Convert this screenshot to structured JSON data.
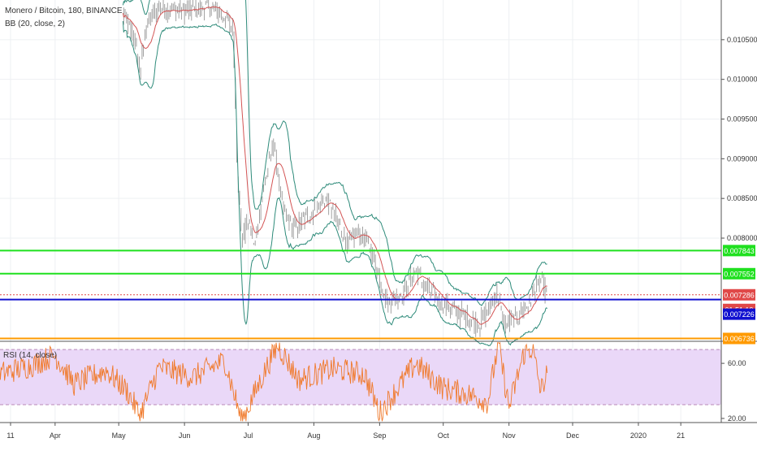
{
  "header": {
    "title": "Monero / Bitcoin, 180, BINANCE",
    "indicator": "BB (20, close, 2)",
    "rsi_label": "RSI (14, close)"
  },
  "colors": {
    "candle": "#8a8a8a",
    "bb_upper": "#2e8b7a",
    "bb_basis": "#d35454",
    "rsi_line": "#f07a2c",
    "rsi_band": "#ead8f8",
    "rsi_band_border": "#b98ab8",
    "grid": "#eef0f3"
  },
  "chart_data": [
    {
      "type": "line",
      "name": "price-panel",
      "x_range": [
        "2019-03-05",
        "2020-01-27"
      ],
      "ylim": [
        0.0067,
        0.011
      ],
      "y_ticks": [
        "0.010500",
        "0.010000",
        "0.009500",
        "0.009000",
        "0.008500",
        "0.008000"
      ],
      "x_ticks": [
        "11",
        "Apr",
        "May",
        "Jun",
        "Jul",
        "Aug",
        "Sep",
        "Oct",
        "Nov",
        "Dec",
        "2020",
        "21"
      ],
      "series": [
        {
          "values": [
            [
              "2019-05-03",
              0.0108
            ],
            [
              "2019-05-08",
              0.01055
            ],
            [
              "2019-05-11",
              0.0101
            ],
            [
              "2019-05-14",
              0.0107
            ],
            [
              "2019-05-20",
              0.0109
            ],
            [
              "2019-06-01",
              0.01085
            ],
            [
              "2019-06-12",
              0.01092
            ],
            [
              "2019-06-20",
              0.0108
            ],
            [
              "2019-06-24",
              0.0106
            ],
            [
              "2019-06-26",
              0.0088
            ],
            [
              "2019-06-28",
              0.008
            ],
            [
              "2019-07-01",
              0.0082
            ],
            [
              "2019-07-04",
              0.0079
            ],
            [
              "2019-07-08",
              0.0086
            ],
            [
              "2019-07-13",
              0.0092
            ],
            [
              "2019-07-17",
              0.0084
            ],
            [
              "2019-07-22",
              0.0081
            ],
            [
              "2019-07-30",
              0.0083
            ],
            [
              "2019-08-07",
              0.0085
            ],
            [
              "2019-08-12",
              0.0082
            ],
            [
              "2019-08-17",
              0.0079
            ],
            [
              "2019-08-22",
              0.0081
            ],
            [
              "2019-08-28",
              0.00785
            ],
            [
              "2019-08-31",
              0.0076
            ],
            [
              "2019-09-04",
              0.0072
            ],
            [
              "2019-09-12",
              0.0073
            ],
            [
              "2019-09-18",
              0.0076
            ],
            [
              "2019-09-22",
              0.0074
            ],
            [
              "2019-09-28",
              0.00725
            ],
            [
              "2019-10-05",
              0.0071
            ],
            [
              "2019-10-12",
              0.007
            ],
            [
              "2019-10-18",
              0.0069
            ],
            [
              "2019-10-22",
              0.0071
            ],
            [
              "2019-10-26",
              0.0073
            ],
            [
              "2019-10-30",
              0.0069
            ],
            [
              "2019-11-04",
              0.007
            ],
            [
              "2019-11-10",
              0.00715
            ],
            [
              "2019-11-13",
              0.00735
            ],
            [
              "2019-11-16",
              0.00745
            ],
            [
              "2019-11-19",
              0.00728
            ]
          ]
        }
      ],
      "horizontal_levels": [
        {
          "value": 0.007843,
          "label": "0.007843",
          "color": "#1fe01f"
        },
        {
          "value": 0.007552,
          "label": "0.007552",
          "color": "#1fe01f"
        },
        {
          "value": 0.007286,
          "label": "0.007286",
          "color": "#e04848"
        },
        {
          "value": 0.007226,
          "label": "0.007226",
          "color": "#1010d0"
        },
        {
          "value": 0.006736,
          "label": "0.006736",
          "color": "#ff9a00"
        }
      ],
      "countdown": {
        "label": "01:51:19",
        "color": "#e04848"
      }
    },
    {
      "type": "line",
      "name": "RSI (14, close)",
      "ylim": [
        17,
        76
      ],
      "y_ticks": [
        60,
        20
      ],
      "bands": [
        70,
        30
      ],
      "series": [
        {
          "name": "RSI (14, close)",
          "values": [
            [
              "2019-03-05",
              52
            ],
            [
              "2019-03-20",
              58
            ],
            [
              "2019-04-01",
              66
            ],
            [
              "2019-04-10",
              45
            ],
            [
              "2019-04-25",
              55
            ],
            [
              "2019-05-05",
              40
            ],
            [
              "2019-05-11",
              22
            ],
            [
              "2019-05-20",
              57
            ],
            [
              "2019-06-05",
              50
            ],
            [
              "2019-06-20",
              62
            ],
            [
              "2019-06-28",
              18
            ],
            [
              "2019-07-10",
              58
            ],
            [
              "2019-07-15",
              73
            ],
            [
              "2019-07-25",
              48
            ],
            [
              "2019-08-10",
              56
            ],
            [
              "2019-08-25",
              52
            ],
            [
              "2019-09-01",
              24
            ],
            [
              "2019-09-18",
              60
            ],
            [
              "2019-10-01",
              42
            ],
            [
              "2019-10-12",
              38
            ],
            [
              "2019-10-22",
              32
            ],
            [
              "2019-10-27",
              74
            ],
            [
              "2019-11-01",
              28
            ],
            [
              "2019-11-08",
              67
            ],
            [
              "2019-11-12",
              71
            ],
            [
              "2019-11-16",
              40
            ],
            [
              "2019-11-19",
              53
            ]
          ]
        }
      ]
    }
  ]
}
